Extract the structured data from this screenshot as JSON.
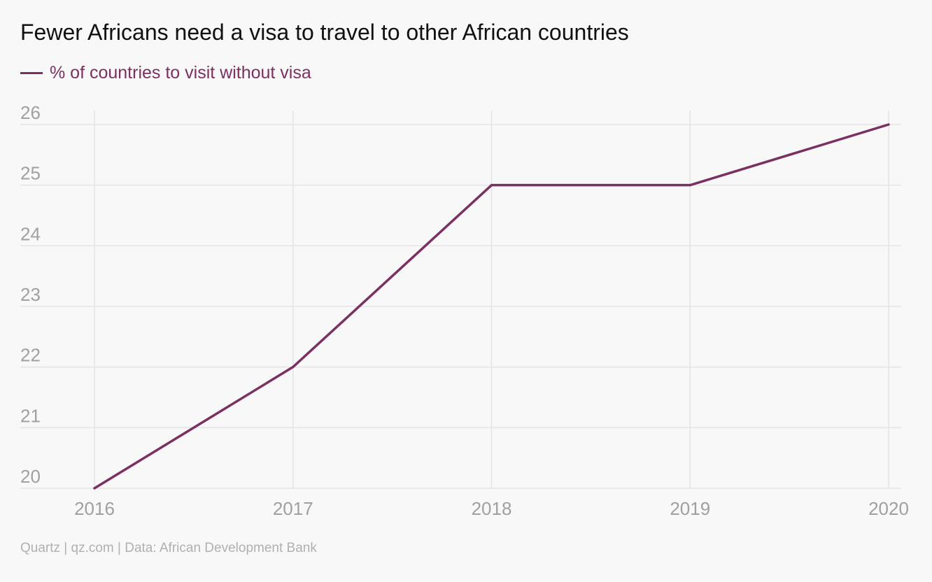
{
  "title": "Fewer Africans need a visa to travel to other African countries",
  "footer": "Quartz | qz.com | Data: African Development Bank",
  "colors": {
    "series": "#7b3062",
    "grid": "#e4e4e4",
    "tick": "#a0a0a0",
    "background": "#f8f8f8"
  },
  "chart_data": {
    "type": "line",
    "title": "Fewer Africans need a visa to travel to other African countries",
    "x": [
      2016,
      2017,
      2018,
      2019,
      2020
    ],
    "x_ticks": [
      "2016",
      "2017",
      "2018",
      "2019",
      "2020"
    ],
    "y_ticks": [
      "20",
      "21",
      "22",
      "23",
      "24",
      "25",
      "26"
    ],
    "ylim": [
      20,
      26
    ],
    "xlabel": "",
    "ylabel": "",
    "grid": true,
    "legend": "top-left",
    "series": [
      {
        "name": "% of countries to visit without visa",
        "values": [
          20,
          22,
          25,
          25,
          26
        ]
      }
    ]
  }
}
